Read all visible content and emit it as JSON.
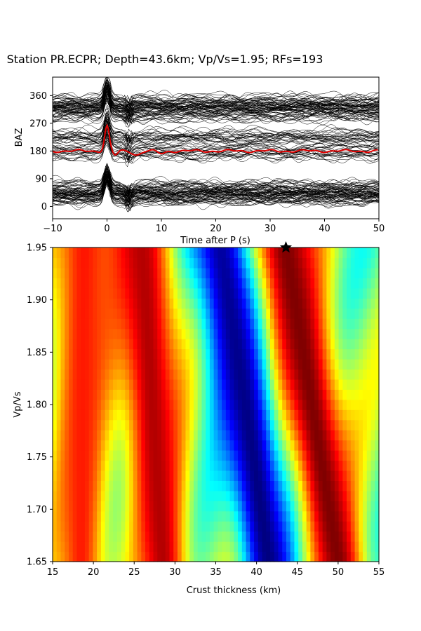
{
  "title": "Station PR.ECPR; Depth=43.6km; Vp/Vs=1.95; RFs=193",
  "colors": {
    "traces": "#000000",
    "stack": "#e00000",
    "marker": "#000000",
    "colormap": "jet"
  },
  "chart_data": [
    {
      "type": "line",
      "name": "receiver-function-traces",
      "title": "",
      "xlabel": "Time after P (s)",
      "ylabel": "BAZ",
      "xlim": [
        -10,
        50
      ],
      "ylim": [
        -40,
        420
      ],
      "xticks": [
        "−10",
        "0",
        "10",
        "20",
        "30",
        "40",
        "50"
      ],
      "yticks": [
        "0",
        "90",
        "180",
        "270",
        "360"
      ],
      "trace_count": 193,
      "trace_clusters_baz": [
        30,
        45,
        60,
        180,
        230,
        300,
        320,
        340
      ],
      "stack_series": {
        "color": "#e00000",
        "baseline_baz": 180,
        "x": [
          -10,
          -5,
          -2,
          0,
          2,
          4,
          6,
          8,
          10,
          15,
          20,
          25,
          30,
          35,
          40,
          45,
          50
        ],
        "y": [
          180,
          177,
          173,
          262,
          175,
          180,
          172,
          182,
          175,
          182,
          183,
          178,
          180,
          182,
          181,
          178,
          183
        ]
      },
      "grid": false
    },
    {
      "type": "heatmap",
      "name": "h-kappa-stack",
      "title": "",
      "xlabel": "Crust thickness (km)",
      "ylabel": "Vp/Vs",
      "xlim": [
        15,
        55
      ],
      "ylim": [
        1.65,
        1.95
      ],
      "xticks": [
        "15",
        "20",
        "25",
        "30",
        "35",
        "40",
        "45",
        "50",
        "55"
      ],
      "yticks": [
        "1.65",
        "1.70",
        "1.75",
        "1.80",
        "1.85",
        "1.90",
        "1.95"
      ],
      "grid_size": {
        "h_steps": 81,
        "k_steps": 31
      },
      "colormap": "jet",
      "best_fit": {
        "thickness_km": 43.6,
        "vpvs": 1.95,
        "marker": "star"
      },
      "ridges": [
        {
          "thickness_at_1_65": 18.5,
          "thickness_at_1_95": 18.8,
          "level": 0.85
        },
        {
          "thickness_at_1_65": 28.5,
          "thickness_at_1_95": 26.0,
          "level": 0.95
        },
        {
          "thickness_at_1_65": 41.5,
          "thickness_at_1_95": 36.0,
          "level": 0.0
        },
        {
          "thickness_at_1_65": 50.0,
          "thickness_at_1_95": 43.6,
          "level": 1.0
        }
      ]
    }
  ]
}
